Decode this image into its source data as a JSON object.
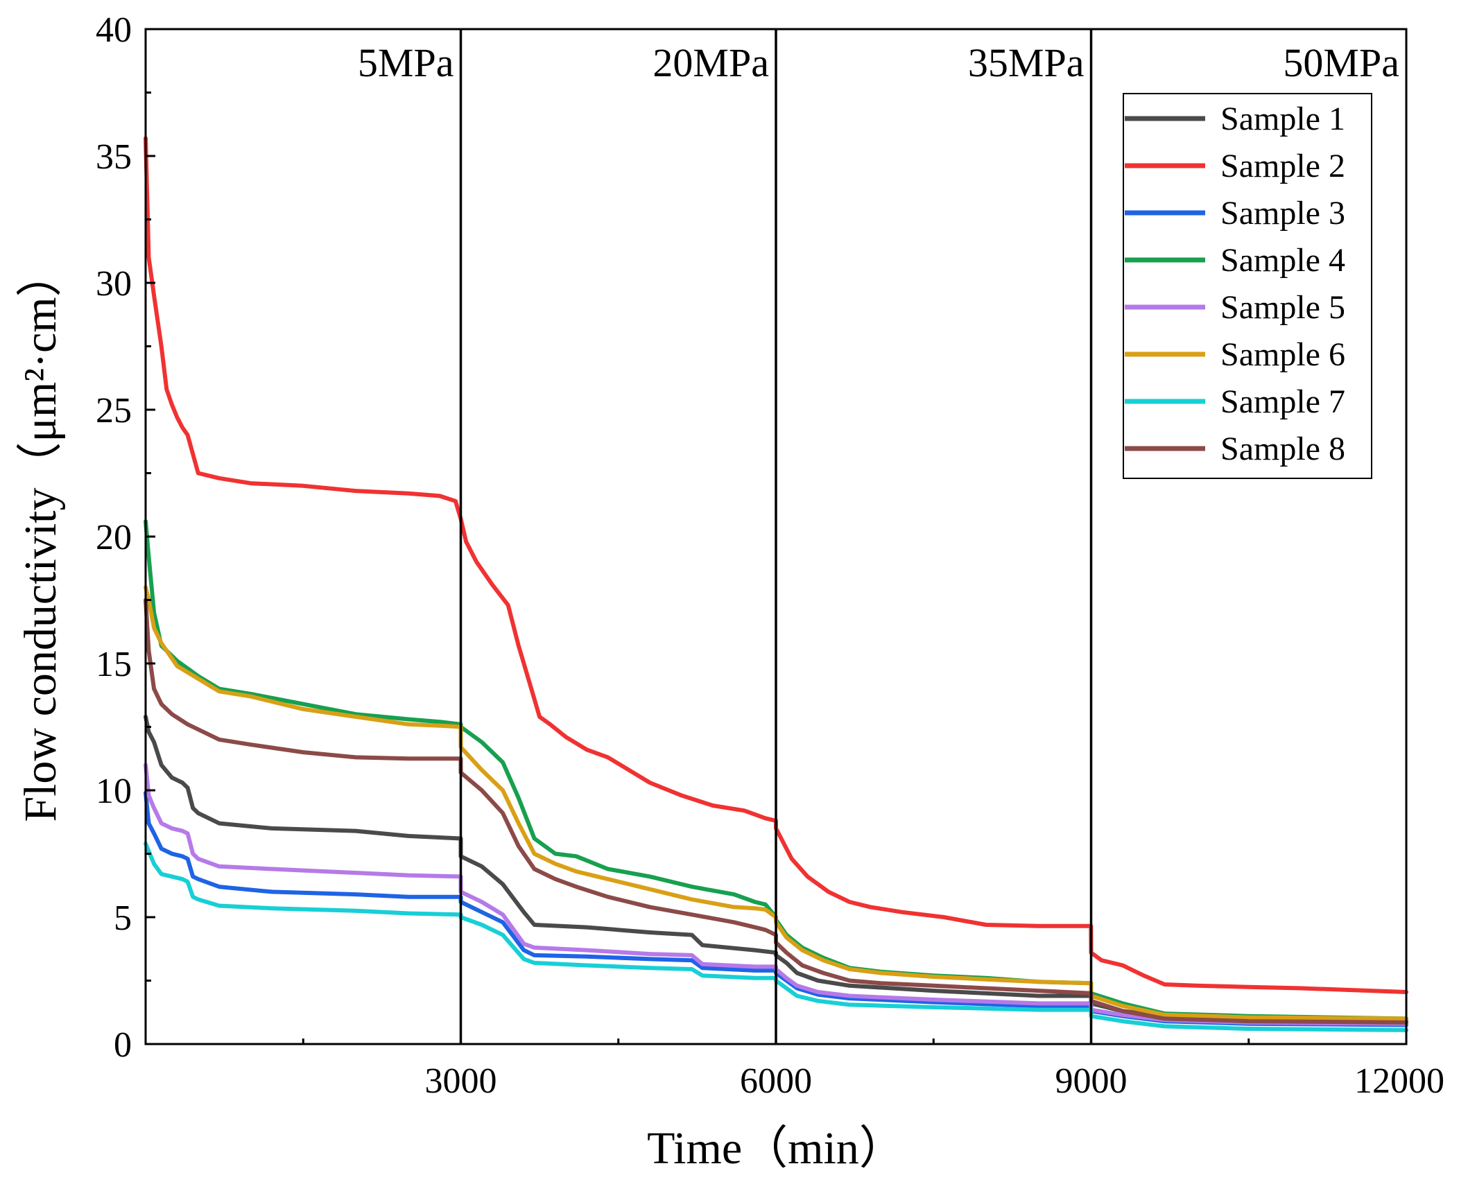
{
  "chart_data": {
    "type": "line",
    "title": "",
    "xlabel": "Time（min）",
    "ylabel": "Flow conductivity（μm²·cm）",
    "xlim": [
      0,
      12000
    ],
    "ylim": [
      0,
      40
    ],
    "x_ticks": [
      3000,
      6000,
      9000,
      12000
    ],
    "x_tick_labels": [
      "3000",
      "6000",
      "9000",
      "12000"
    ],
    "x_minor_ticks": [
      1500,
      4500,
      7500,
      10500
    ],
    "y_ticks": [
      0,
      5,
      10,
      15,
      20,
      25,
      30,
      35,
      40
    ],
    "y_tick_labels": [
      "0",
      "5",
      "10",
      "15",
      "20",
      "25",
      "30",
      "35",
      "40"
    ],
    "y_minor_ticks": [
      2.5,
      7.5,
      12.5,
      17.5,
      22.5,
      27.5,
      32.5,
      37.5
    ],
    "legend_position": "top-right",
    "grid": false,
    "pressure_stages": [
      {
        "label": "5MPa",
        "start": 0,
        "end": 3000
      },
      {
        "label": "20MPa",
        "start": 3000,
        "end": 6000
      },
      {
        "label": "35MPa",
        "start": 6000,
        "end": 9000
      },
      {
        "label": "50MPa",
        "start": 9000,
        "end": 12000
      }
    ],
    "stage_dividers": [
      3000,
      6000,
      9000
    ],
    "series": [
      {
        "name": "Sample 1",
        "color": "#4a4a4a",
        "x": [
          0,
          30,
          80,
          150,
          250,
          350,
          400,
          450,
          500,
          700,
          1200,
          2000,
          2500,
          3000,
          3000,
          3200,
          3400,
          3600,
          3700,
          4200,
          4800,
          5200,
          5300,
          5800,
          6000,
          6000,
          6100,
          6200,
          6400,
          6700,
          7500,
          8500,
          9000,
          9000,
          9300,
          9700,
          10500,
          12000
        ],
        "values": [
          12.9,
          12.3,
          11.9,
          11.0,
          10.5,
          10.3,
          10.1,
          9.3,
          9.1,
          8.7,
          8.5,
          8.4,
          8.2,
          8.1,
          7.4,
          7.0,
          6.3,
          5.2,
          4.7,
          4.6,
          4.4,
          4.3,
          3.9,
          3.7,
          3.6,
          3.5,
          3.2,
          2.8,
          2.5,
          2.3,
          2.1,
          1.9,
          1.9,
          1.6,
          1.3,
          1.1,
          1.0,
          0.9
        ]
      },
      {
        "name": "Sample 2",
        "color": "#f03232",
        "x": [
          0,
          30,
          80,
          150,
          200,
          250,
          300,
          350,
          400,
          500,
          700,
          1000,
          1500,
          2000,
          2500,
          2800,
          2950,
          3000,
          3050,
          3150,
          3300,
          3450,
          3550,
          3650,
          3750,
          3850,
          4000,
          4200,
          4400,
          4600,
          4800,
          5100,
          5400,
          5700,
          5900,
          6000,
          6000,
          6150,
          6300,
          6500,
          6700,
          6900,
          7200,
          7600,
          8000,
          8500,
          8999,
          9000,
          9100,
          9300,
          9500,
          9700,
          10000,
          10500,
          11000,
          12000
        ],
        "values": [
          35.7,
          31.0,
          29.5,
          27.5,
          25.8,
          25.2,
          24.7,
          24.3,
          24.0,
          22.5,
          22.3,
          22.1,
          22.0,
          21.8,
          21.7,
          21.6,
          21.4,
          20.7,
          19.8,
          19.0,
          18.1,
          17.3,
          15.7,
          14.3,
          12.9,
          12.6,
          12.1,
          11.6,
          11.3,
          10.8,
          10.3,
          9.8,
          9.4,
          9.2,
          8.9,
          8.8,
          8.5,
          7.3,
          6.6,
          6.0,
          5.6,
          5.4,
          5.2,
          5.0,
          4.7,
          4.65,
          4.65,
          3.6,
          3.3,
          3.1,
          2.7,
          2.35,
          2.3,
          2.25,
          2.2,
          2.05
        ]
      },
      {
        "name": "Sample 3",
        "color": "#1f63e6",
        "x": [
          0,
          30,
          80,
          150,
          250,
          350,
          400,
          450,
          500,
          700,
          1200,
          2000,
          2500,
          3000,
          3000,
          3200,
          3400,
          3600,
          3700,
          4200,
          4800,
          5200,
          5300,
          5800,
          6000,
          6000,
          6100,
          6200,
          6400,
          6700,
          7500,
          8500,
          9000,
          9000,
          9300,
          9700,
          10500,
          12000
        ],
        "values": [
          9.9,
          8.7,
          8.3,
          7.7,
          7.5,
          7.4,
          7.3,
          6.6,
          6.5,
          6.2,
          6.0,
          5.9,
          5.8,
          5.8,
          5.6,
          5.2,
          4.8,
          3.7,
          3.5,
          3.45,
          3.35,
          3.3,
          3.0,
          2.9,
          2.9,
          2.8,
          2.5,
          2.2,
          1.95,
          1.8,
          1.65,
          1.5,
          1.5,
          1.3,
          1.1,
          0.9,
          0.8,
          0.75
        ]
      },
      {
        "name": "Sample 4",
        "color": "#17a04f",
        "x": [
          0,
          30,
          80,
          150,
          250,
          300,
          500,
          700,
          1000,
          1500,
          2000,
          2500,
          2800,
          3000,
          3000,
          3200,
          3400,
          3550,
          3700,
          3900,
          4100,
          4400,
          4800,
          5200,
          5600,
          5800,
          5900,
          6000,
          6000,
          6100,
          6250,
          6450,
          6700,
          7000,
          7500,
          8000,
          8500,
          9000,
          9000,
          9300,
          9700,
          10500,
          12000
        ],
        "values": [
          20.6,
          19.2,
          17.0,
          15.7,
          15.3,
          15.1,
          14.5,
          14.0,
          13.8,
          13.4,
          13.0,
          12.8,
          12.7,
          12.6,
          12.5,
          11.9,
          11.1,
          9.7,
          8.1,
          7.5,
          7.4,
          6.9,
          6.6,
          6.2,
          5.9,
          5.6,
          5.5,
          5.0,
          4.9,
          4.3,
          3.8,
          3.4,
          3.0,
          2.85,
          2.7,
          2.6,
          2.45,
          2.4,
          2.0,
          1.6,
          1.2,
          1.1,
          1.0
        ]
      },
      {
        "name": "Sample 5",
        "color": "#b67ae8",
        "x": [
          0,
          30,
          80,
          150,
          250,
          350,
          400,
          450,
          500,
          700,
          1200,
          2000,
          2500,
          3000,
          3000,
          3200,
          3400,
          3600,
          3700,
          4200,
          4800,
          5200,
          5300,
          5800,
          6000,
          6000,
          6100,
          6200,
          6400,
          6700,
          7500,
          8500,
          9000,
          9000,
          9300,
          9700,
          10500,
          12000
        ],
        "values": [
          11.0,
          9.8,
          9.3,
          8.7,
          8.5,
          8.4,
          8.3,
          7.5,
          7.3,
          7.0,
          6.9,
          6.75,
          6.65,
          6.6,
          6.0,
          5.6,
          5.1,
          3.95,
          3.8,
          3.7,
          3.55,
          3.5,
          3.15,
          3.05,
          3.05,
          2.95,
          2.6,
          2.3,
          2.05,
          1.9,
          1.75,
          1.6,
          1.6,
          1.35,
          1.15,
          0.95,
          0.85,
          0.8
        ]
      },
      {
        "name": "Sample 6",
        "color": "#d9a016",
        "x": [
          0,
          30,
          80,
          150,
          250,
          300,
          500,
          700,
          1000,
          1500,
          2000,
          2500,
          2800,
          3000,
          3000,
          3200,
          3400,
          3550,
          3700,
          3900,
          4100,
          4400,
          4800,
          5200,
          5600,
          5800,
          5900,
          6000,
          6000,
          6100,
          6250,
          6450,
          6700,
          7000,
          7500,
          8000,
          8500,
          9000,
          9000,
          9300,
          9700,
          10500,
          12000
        ],
        "values": [
          18.0,
          17.5,
          16.4,
          15.8,
          15.2,
          14.9,
          14.4,
          13.9,
          13.7,
          13.2,
          12.9,
          12.6,
          12.55,
          12.5,
          11.7,
          10.8,
          10.0,
          8.7,
          7.5,
          7.1,
          6.8,
          6.5,
          6.1,
          5.7,
          5.4,
          5.35,
          5.3,
          5.0,
          4.8,
          4.2,
          3.7,
          3.3,
          2.95,
          2.8,
          2.65,
          2.55,
          2.45,
          2.4,
          1.9,
          1.5,
          1.15,
          1.05,
          1.0
        ]
      },
      {
        "name": "Sample 7",
        "color": "#18cfd6",
        "x": [
          0,
          30,
          80,
          150,
          250,
          350,
          400,
          450,
          500,
          700,
          1200,
          2000,
          2500,
          3000,
          3000,
          3200,
          3400,
          3600,
          3700,
          4200,
          4800,
          5200,
          5300,
          5800,
          6000,
          6000,
          6100,
          6200,
          6400,
          6700,
          7500,
          8500,
          9000,
          9000,
          9300,
          9700,
          10500,
          12000
        ],
        "values": [
          7.9,
          7.6,
          7.1,
          6.7,
          6.6,
          6.5,
          6.4,
          5.8,
          5.7,
          5.45,
          5.35,
          5.25,
          5.15,
          5.1,
          5.0,
          4.7,
          4.3,
          3.35,
          3.2,
          3.1,
          3.0,
          2.95,
          2.7,
          2.6,
          2.6,
          2.5,
          2.2,
          1.9,
          1.7,
          1.55,
          1.45,
          1.35,
          1.35,
          1.1,
          0.9,
          0.7,
          0.6,
          0.55
        ]
      },
      {
        "name": "Sample 8",
        "color": "#8b4a48",
        "x": [
          0,
          30,
          80,
          150,
          250,
          400,
          700,
          1000,
          1500,
          2000,
          2500,
          3000,
          3000,
          3200,
          3400,
          3550,
          3700,
          3900,
          4100,
          4400,
          4800,
          5200,
          5600,
          5800,
          5900,
          6000,
          6000,
          6100,
          6250,
          6450,
          6700,
          7000,
          7500,
          8000,
          8500,
          9000,
          9000,
          9300,
          9700,
          10500,
          12000
        ],
        "values": [
          17.5,
          15.5,
          14.0,
          13.4,
          13.0,
          12.6,
          12.0,
          11.8,
          11.5,
          11.3,
          11.25,
          11.25,
          10.7,
          10.0,
          9.1,
          7.8,
          6.9,
          6.5,
          6.2,
          5.8,
          5.4,
          5.1,
          4.8,
          4.6,
          4.5,
          4.3,
          4.0,
          3.6,
          3.1,
          2.8,
          2.5,
          2.4,
          2.3,
          2.2,
          2.1,
          2.0,
          1.7,
          1.3,
          1.0,
          0.9,
          0.85
        ]
      }
    ]
  }
}
